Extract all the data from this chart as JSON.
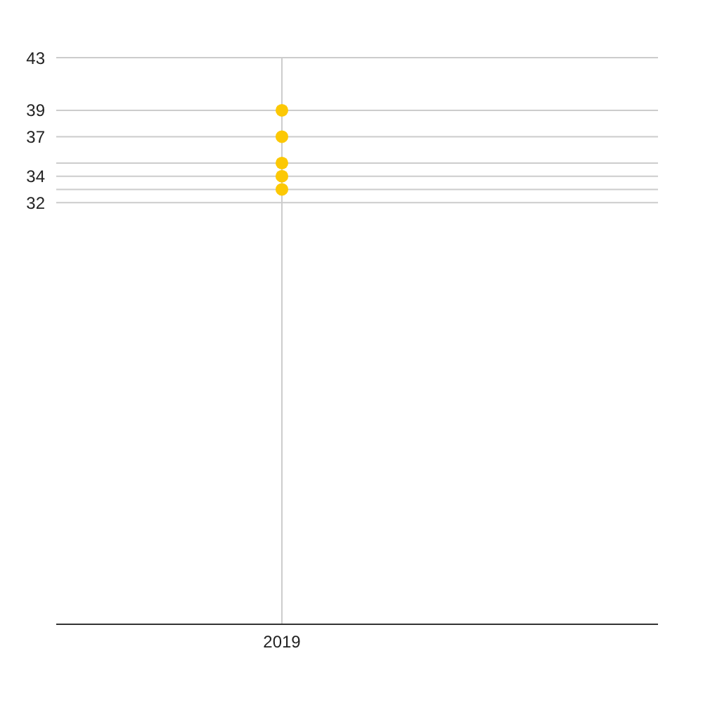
{
  "chart_data": {
    "type": "scatter",
    "categories": [
      null,
      "2019",
      null,
      null
    ],
    "series": [
      {
        "color": "#fcc804",
        "values": [
          null,
          39,
          null,
          null
        ]
      },
      {
        "color": "#fcc804",
        "values": [
          null,
          37,
          null,
          null
        ]
      },
      {
        "color": "#fcc804",
        "values": [
          null,
          35,
          null,
          null
        ]
      },
      {
        "color": "#fcc804",
        "values": [
          null,
          34,
          null,
          null
        ]
      },
      {
        "color": "#fcc804",
        "values": [
          null,
          33,
          null,
          null
        ]
      }
    ],
    "ylim": [
      0,
      43
    ],
    "yticks": [
      43,
      39,
      37,
      {
        "value": 35,
        "label": null
      },
      34,
      {
        "value": 33,
        "label": null
      },
      32
    ],
    "grid": true,
    "marker": "circle",
    "legend": false
  }
}
